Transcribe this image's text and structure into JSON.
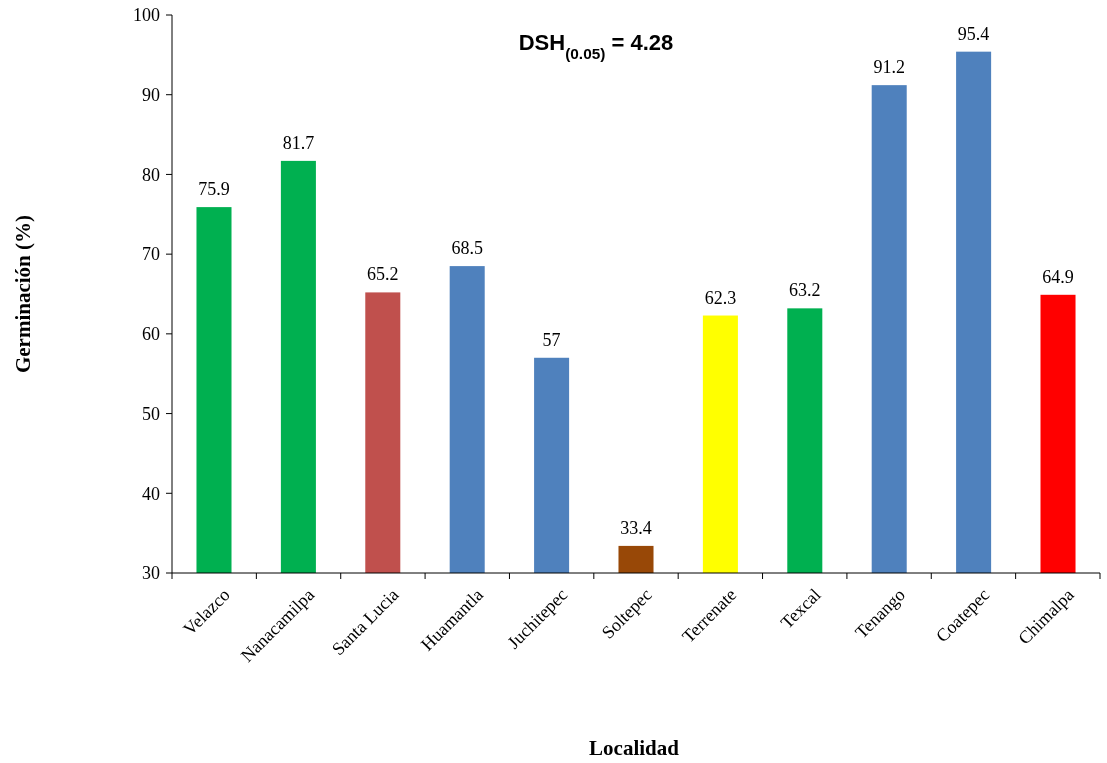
{
  "chart_data": {
    "type": "bar",
    "xlabel": "Localidad",
    "ylabel": "Germinación (%)",
    "annotations": [
      "DSH$_{(0.05)}$ = 4.28"
    ],
    "categories": [
      "Velazco",
      "Nanacamilpa",
      "Santa Lucia",
      "Huamantla",
      "Juchitepec",
      "Soltepec",
      "Terrenate",
      "Texcal",
      "Tenango",
      "Coatepec",
      "Chimalpa"
    ],
    "values": [
      75.9,
      81.7,
      65.2,
      68.5,
      57,
      33.4,
      62.3,
      63.2,
      91.2,
      95.4,
      64.9
    ],
    "colors": [
      "#00b050",
      "#00b050",
      "#c0504d",
      "#4f81bd",
      "#4f81bd",
      "#984807",
      "#ffff00",
      "#00b050",
      "#4f81bd",
      "#4f81bd",
      "#ff0000"
    ],
    "ylim": [
      30,
      100
    ],
    "yticks": [
      30,
      40,
      50,
      60,
      70,
      80,
      90,
      100
    ],
    "data_labels": true,
    "grid": false
  }
}
